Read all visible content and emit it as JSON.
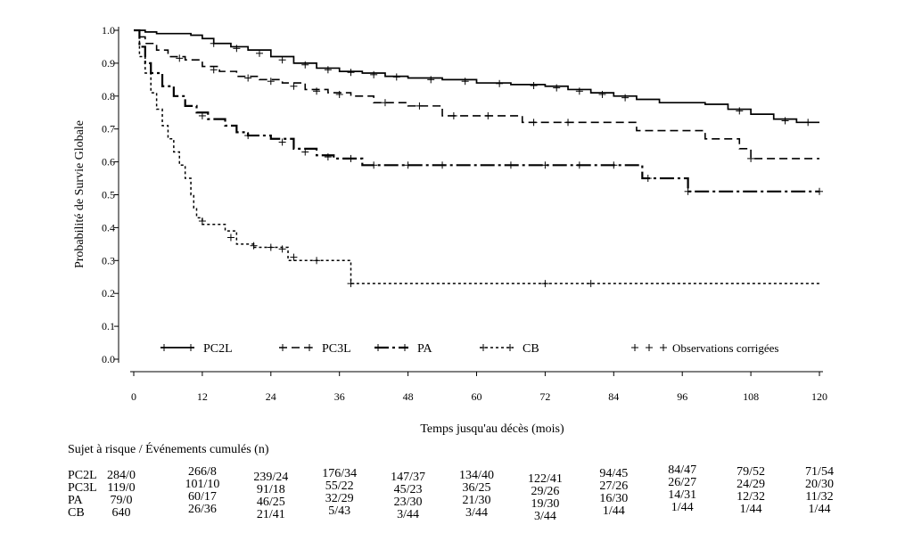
{
  "chart_data": {
    "type": "line",
    "step": true,
    "ylabel": "Probabilité de Survie Globale",
    "xlabel": "Temps jusqu'au décès (mois)",
    "xlim": [
      0,
      120
    ],
    "ylim": [
      0,
      1.0
    ],
    "x_ticks": [
      "0",
      "12",
      "24",
      "36",
      "48",
      "60",
      "72",
      "84",
      "96",
      "108",
      "120"
    ],
    "y_ticks": [
      "0.0",
      "0.1",
      "0.2",
      "0.3",
      "0.4",
      "0.5",
      "0.6",
      "0.7",
      "0.8",
      "0.9",
      "1.0"
    ],
    "grid": false,
    "legend_position": "bottom-inside",
    "censor_legend_label": "Observations corrigées",
    "series": [
      {
        "name": "PC2L",
        "dash": "solid",
        "points": [
          [
            0,
            1.0
          ],
          [
            2,
            0.995
          ],
          [
            4,
            0.99
          ],
          [
            10,
            0.985
          ],
          [
            12,
            0.975
          ],
          [
            14,
            0.96
          ],
          [
            17,
            0.95
          ],
          [
            20,
            0.94
          ],
          [
            24,
            0.92
          ],
          [
            28,
            0.9
          ],
          [
            32,
            0.885
          ],
          [
            36,
            0.875
          ],
          [
            40,
            0.87
          ],
          [
            44,
            0.86
          ],
          [
            48,
            0.855
          ],
          [
            54,
            0.85
          ],
          [
            60,
            0.84
          ],
          [
            66,
            0.835
          ],
          [
            72,
            0.83
          ],
          [
            76,
            0.82
          ],
          [
            80,
            0.81
          ],
          [
            84,
            0.8
          ],
          [
            88,
            0.79
          ],
          [
            92,
            0.78
          ],
          [
            100,
            0.775
          ],
          [
            104,
            0.76
          ],
          [
            108,
            0.745
          ],
          [
            112,
            0.73
          ],
          [
            116,
            0.72
          ],
          [
            120,
            0.72
          ]
        ],
        "censors": [
          [
            14,
            0.96
          ],
          [
            18,
            0.945
          ],
          [
            22,
            0.93
          ],
          [
            26,
            0.91
          ],
          [
            30,
            0.895
          ],
          [
            34,
            0.88
          ],
          [
            38,
            0.872
          ],
          [
            42,
            0.865
          ],
          [
            46,
            0.858
          ],
          [
            52,
            0.85
          ],
          [
            58,
            0.845
          ],
          [
            64,
            0.838
          ],
          [
            70,
            0.832
          ],
          [
            74,
            0.825
          ],
          [
            78,
            0.815
          ],
          [
            82,
            0.805
          ],
          [
            86,
            0.795
          ],
          [
            106,
            0.755
          ],
          [
            114,
            0.725
          ],
          [
            118,
            0.72
          ]
        ]
      },
      {
        "name": "PC3L",
        "dash": "dashed",
        "points": [
          [
            0,
            1.0
          ],
          [
            1,
            0.98
          ],
          [
            2,
            0.96
          ],
          [
            4,
            0.94
          ],
          [
            6,
            0.92
          ],
          [
            9,
            0.91
          ],
          [
            12,
            0.89
          ],
          [
            15,
            0.875
          ],
          [
            18,
            0.86
          ],
          [
            22,
            0.85
          ],
          [
            26,
            0.84
          ],
          [
            30,
            0.82
          ],
          [
            34,
            0.81
          ],
          [
            38,
            0.8
          ],
          [
            42,
            0.78
          ],
          [
            48,
            0.77
          ],
          [
            54,
            0.74
          ],
          [
            60,
            0.74
          ],
          [
            68,
            0.72
          ],
          [
            78,
            0.72
          ],
          [
            88,
            0.695
          ],
          [
            100,
            0.67
          ],
          [
            106,
            0.64
          ],
          [
            108,
            0.61
          ],
          [
            120,
            0.61
          ]
        ],
        "censors": [
          [
            8,
            0.915
          ],
          [
            14,
            0.88
          ],
          [
            20,
            0.855
          ],
          [
            24,
            0.845
          ],
          [
            28,
            0.83
          ],
          [
            32,
            0.815
          ],
          [
            36,
            0.805
          ],
          [
            44,
            0.78
          ],
          [
            50,
            0.77
          ],
          [
            56,
            0.74
          ],
          [
            62,
            0.74
          ],
          [
            70,
            0.72
          ],
          [
            76,
            0.72
          ],
          [
            108,
            0.61
          ]
        ]
      },
      {
        "name": "PA",
        "dash": "dashdot",
        "points": [
          [
            0,
            1.0
          ],
          [
            1,
            0.95
          ],
          [
            2,
            0.9
          ],
          [
            3,
            0.87
          ],
          [
            5,
            0.83
          ],
          [
            7,
            0.8
          ],
          [
            9,
            0.77
          ],
          [
            11,
            0.75
          ],
          [
            13,
            0.73
          ],
          [
            16,
            0.71
          ],
          [
            18,
            0.69
          ],
          [
            20,
            0.68
          ],
          [
            24,
            0.67
          ],
          [
            28,
            0.64
          ],
          [
            32,
            0.62
          ],
          [
            35,
            0.61
          ],
          [
            40,
            0.59
          ],
          [
            46,
            0.59
          ],
          [
            60,
            0.59
          ],
          [
            89,
            0.55
          ],
          [
            97,
            0.51
          ],
          [
            120,
            0.51
          ]
        ],
        "censors": [
          [
            12,
            0.74
          ],
          [
            20,
            0.68
          ],
          [
            26,
            0.66
          ],
          [
            30,
            0.63
          ],
          [
            34,
            0.615
          ],
          [
            38,
            0.61
          ],
          [
            42,
            0.59
          ],
          [
            48,
            0.59
          ],
          [
            54,
            0.59
          ],
          [
            66,
            0.59
          ],
          [
            72,
            0.59
          ],
          [
            78,
            0.59
          ],
          [
            84,
            0.59
          ],
          [
            90,
            0.55
          ],
          [
            97,
            0.51
          ],
          [
            120,
            0.51
          ]
        ]
      },
      {
        "name": "CB",
        "dash": "dotted",
        "points": [
          [
            0,
            1.0
          ],
          [
            1,
            0.92
          ],
          [
            2,
            0.87
          ],
          [
            3,
            0.81
          ],
          [
            4,
            0.76
          ],
          [
            5,
            0.71
          ],
          [
            6,
            0.67
          ],
          [
            7,
            0.63
          ],
          [
            8,
            0.59
          ],
          [
            9,
            0.55
          ],
          [
            10,
            0.5
          ],
          [
            10.5,
            0.46
          ],
          [
            11,
            0.43
          ],
          [
            12,
            0.41
          ],
          [
            16,
            0.39
          ],
          [
            18,
            0.35
          ],
          [
            21,
            0.34
          ],
          [
            27,
            0.3
          ],
          [
            38,
            0.23
          ],
          [
            120,
            0.23
          ]
        ],
        "censors": [
          [
            12,
            0.42
          ],
          [
            17,
            0.37
          ],
          [
            21,
            0.345
          ],
          [
            24,
            0.34
          ],
          [
            26,
            0.335
          ],
          [
            28,
            0.31
          ],
          [
            32,
            0.3
          ],
          [
            38,
            0.23
          ],
          [
            72,
            0.23
          ],
          [
            80,
            0.23
          ]
        ]
      }
    ]
  },
  "risk_table": {
    "title": "Sujet à risque / Événements cumulés (n)",
    "times": [
      0,
      12,
      24,
      36,
      48,
      60,
      72,
      84,
      96,
      108,
      120
    ],
    "rows": [
      {
        "label": "PC2L",
        "values": [
          "284/0",
          "266/8",
          "239/24",
          "176/34",
          "147/37",
          "134/40",
          "122/41",
          "94/45",
          "84/47",
          "79/52",
          "71/54"
        ]
      },
      {
        "label": "PC3L",
        "values": [
          "119/0",
          "101/10",
          "91/18",
          "55/22",
          "45/23",
          "36/25",
          "29/26",
          "27/26",
          "26/27",
          "24/29",
          "20/30"
        ]
      },
      {
        "label": "PA",
        "values": [
          "79/0",
          "60/17",
          "46/25",
          "32/29",
          "23/30",
          "21/30",
          "19/30",
          "16/30",
          "14/31",
          "12/32",
          "11/32"
        ]
      },
      {
        "label": "CB",
        "values": [
          "640",
          "26/36",
          "21/41",
          "5/43",
          "3/44",
          "3/44",
          "3/44",
          "1/44",
          "1/44",
          "1/44",
          "1/44"
        ]
      }
    ]
  }
}
